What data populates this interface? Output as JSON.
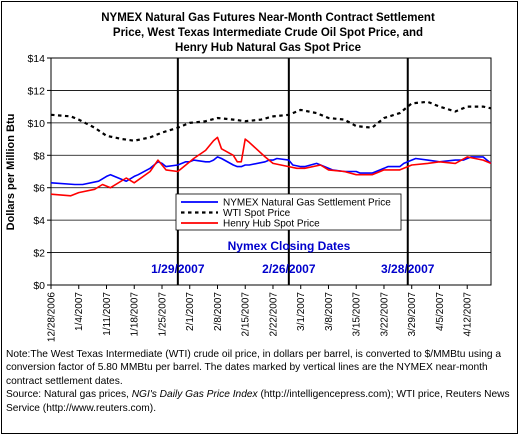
{
  "chart_data": {
    "type": "line",
    "title_lines": [
      "NYMEX Natural Gas Futures Near-Month Contract Settlement",
      "Price, West Texas Intermediate Crude Oil Spot Price, and",
      "Henry Hub Natural Gas Spot Price"
    ],
    "ylabel": "Dollars per Million Btu",
    "ylim": [
      0,
      14
    ],
    "y_ticks": [
      "$0",
      "$2",
      "$4",
      "$6",
      "$8",
      "$10",
      "$12",
      "$14"
    ],
    "y_tick_values": [
      0,
      2,
      4,
      6,
      8,
      10,
      12,
      14
    ],
    "x_ticks": [
      "12/28/2006",
      "1/4/2007",
      "1/11/2007",
      "1/18/2007",
      "1/25/2007",
      "2/1/2007",
      "2/8/2007",
      "2/15/2007",
      "2/22/2007",
      "3/1/2007",
      "3/8/2007",
      "3/15/2007",
      "3/22/2007",
      "3/29/2007",
      "4/5/2007",
      "4/12/2007"
    ],
    "x_start": "12/28/2006",
    "x_end": "4/18/2007",
    "grid": "horizontal",
    "legend_position": "center",
    "series": [
      {
        "name": "NYMEX Natural Gas Settlement Price",
        "color": "#0000ff",
        "style": "solid",
        "dates": [
          "12/28/2006",
          "1/3/2007",
          "1/5/2007",
          "1/9/2007",
          "1/11/2007",
          "1/12/2007",
          "1/16/2007",
          "1/18/2007",
          "1/19/2007",
          "1/22/2007",
          "1/23/2007",
          "1/24/2007",
          "1/25/2007",
          "1/26/2007",
          "1/29/2007",
          "1/30/2007",
          "1/31/2007",
          "2/1/2007",
          "2/2/2007",
          "2/5/2007",
          "2/6/2007",
          "2/7/2007",
          "2/8/2007",
          "2/9/2007",
          "2/12/2007",
          "2/13/2007",
          "2/14/2007",
          "2/15/2007",
          "2/16/2007",
          "2/20/2007",
          "2/21/2007",
          "2/22/2007",
          "2/23/2007",
          "2/26/2007",
          "2/27/2007",
          "3/1/2007",
          "3/2/2007",
          "3/5/2007",
          "3/8/2007",
          "3/9/2007",
          "3/12/2007",
          "3/15/2007",
          "3/16/2007",
          "3/19/2007",
          "3/22/2007",
          "3/23/2007",
          "3/26/2007",
          "3/27/2007",
          "3/29/2007",
          "3/30/2007",
          "4/2/2007",
          "4/5/2007",
          "4/9/2007",
          "4/11/2007",
          "4/12/2007",
          "4/13/2007",
          "4/16/2007",
          "4/17/2007",
          "4/18/2007"
        ],
        "values": [
          6.3,
          6.2,
          6.2,
          6.4,
          6.7,
          6.8,
          6.4,
          6.7,
          6.8,
          7.2,
          7.4,
          7.6,
          7.5,
          7.3,
          7.4,
          7.5,
          7.6,
          7.6,
          7.7,
          7.6,
          7.6,
          7.7,
          7.9,
          7.8,
          7.4,
          7.3,
          7.3,
          7.4,
          7.4,
          7.6,
          7.7,
          7.7,
          7.8,
          7.7,
          7.4,
          7.3,
          7.3,
          7.5,
          7.2,
          7.1,
          7.0,
          7.0,
          6.9,
          6.9,
          7.2,
          7.3,
          7.3,
          7.5,
          7.7,
          7.8,
          7.7,
          7.6,
          7.7,
          7.7,
          7.8,
          7.9,
          7.9,
          7.7,
          7.5
        ]
      },
      {
        "name": "WTI Spot Price",
        "color": "#000000",
        "style": "dashed",
        "dates": [
          "12/28/2006",
          "1/2/2007",
          "1/4/2007",
          "1/8/2007",
          "1/11/2007",
          "1/15/2007",
          "1/18/2007",
          "1/22/2007",
          "1/25/2007",
          "1/29/2007",
          "2/1/2007",
          "2/5/2007",
          "2/8/2007",
          "2/12/2007",
          "2/15/2007",
          "2/19/2007",
          "2/22/2007",
          "2/26/2007",
          "3/1/2007",
          "3/5/2007",
          "3/8/2007",
          "3/12/2007",
          "3/15/2007",
          "3/19/2007",
          "3/22/2007",
          "3/26/2007",
          "3/29/2007",
          "4/2/2007",
          "4/5/2007",
          "4/9/2007",
          "4/12/2007",
          "4/16/2007",
          "4/18/2007"
        ],
        "values": [
          10.5,
          10.4,
          10.2,
          9.7,
          9.2,
          9.0,
          8.9,
          9.1,
          9.4,
          9.7,
          10.0,
          10.1,
          10.3,
          10.2,
          10.1,
          10.2,
          10.4,
          10.5,
          10.8,
          10.6,
          10.3,
          10.2,
          9.8,
          9.7,
          10.3,
          10.6,
          11.2,
          11.3,
          11.0,
          10.7,
          11.0,
          11.0,
          10.9
        ]
      },
      {
        "name": "Henry Hub Spot Price",
        "color": "#ff0000",
        "style": "solid",
        "dates": [
          "12/28/2006",
          "1/2/2007",
          "1/4/2007",
          "1/8/2007",
          "1/10/2007",
          "1/12/2007",
          "1/16/2007",
          "1/18/2007",
          "1/22/2007",
          "1/24/2007",
          "1/26/2007",
          "1/29/2007",
          "1/31/2007",
          "2/2/2007",
          "2/5/2007",
          "2/7/2007",
          "2/8/2007",
          "2/9/2007",
          "2/12/2007",
          "2/13/2007",
          "2/14/2007",
          "2/15/2007",
          "2/16/2007",
          "2/20/2007",
          "2/22/2007",
          "2/26/2007",
          "2/28/2007",
          "3/2/2007",
          "3/6/2007",
          "3/8/2007",
          "3/12/2007",
          "3/15/2007",
          "3/19/2007",
          "3/22/2007",
          "3/26/2007",
          "3/29/2007",
          "4/2/2007",
          "4/5/2007",
          "4/9/2007",
          "4/12/2007",
          "4/16/2007",
          "4/18/2007"
        ],
        "values": [
          5.6,
          5.5,
          5.7,
          5.9,
          6.2,
          6.0,
          6.6,
          6.3,
          7.0,
          7.7,
          7.1,
          7.0,
          7.4,
          7.8,
          8.3,
          8.9,
          9.1,
          8.4,
          8.0,
          7.6,
          7.6,
          9.0,
          8.8,
          7.9,
          7.5,
          7.3,
          7.2,
          7.2,
          7.4,
          7.1,
          7.0,
          6.8,
          6.8,
          7.1,
          7.1,
          7.4,
          7.5,
          7.6,
          7.5,
          7.9,
          7.7,
          7.5
        ]
      }
    ],
    "closing_dates": {
      "heading": "Nymex Closing Dates",
      "dates": [
        "1/29/2007",
        "2/26/2007",
        "3/28/2007"
      ]
    }
  },
  "note": {
    "main": "Note:The West Texas Intermediate (WTI) crude oil price, in dollars per barrel,  is converted to $/MMBtu using a conversion factor of 5.80 MMBtu per barrel.  The dates marked by vertical lines are the NYMEX near-month contract settlement dates.",
    "source_prefix": "Source: Natural gas prices, ",
    "source_italic": "NGI's Daily Gas Price Index",
    "source_suffix": " (http://intelligencepress.com); WTI price, Reuters News Service (http://www.reuters.com)."
  }
}
